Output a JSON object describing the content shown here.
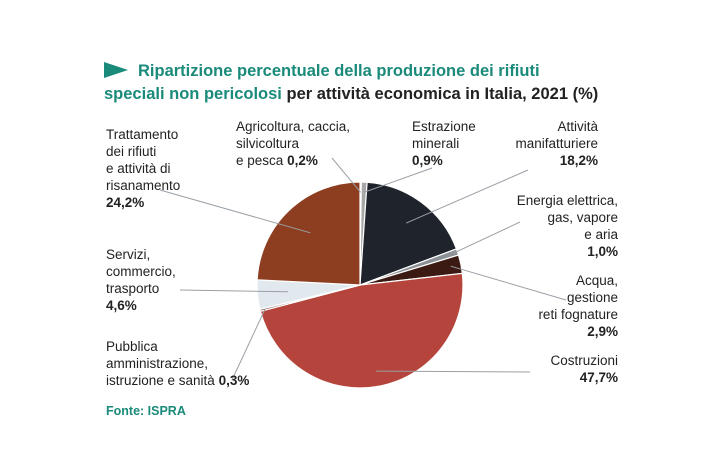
{
  "title": {
    "highlight_line1": "Ripartizione percentuale della produzione dei rifiuti",
    "highlight_line2": "speciali non pericolosi",
    "rest_line2": "per attività economica in Italia, 2021 (%)"
  },
  "source": "Fonte: ISPRA",
  "colors": {
    "accent": "#1a8a7a"
  },
  "chart_data": {
    "type": "pie",
    "start_angle_deg": 0,
    "direction": "clockwise",
    "slices": [
      {
        "label": "Agricoltura, caccia,\nsilvicoltura\ne pesca",
        "value": 0.2,
        "value_label": "0,2%",
        "color": "#c9c9c9"
      },
      {
        "label": "Estrazione\nminerali",
        "value": 0.9,
        "value_label": "0,9%",
        "color": "#a8a8a8"
      },
      {
        "label": "Attività\nmanifatturiere",
        "value": 18.2,
        "value_label": "18,2%",
        "color": "#1f242c"
      },
      {
        "label": "Energia elettrica,\ngas, vapore\ne aria",
        "value": 1.0,
        "value_label": "1,0%",
        "color": "#8c9197"
      },
      {
        "label": "Acqua,\ngestione\nreti fognature",
        "value": 2.9,
        "value_label": "2,9%",
        "color": "#3a1a12"
      },
      {
        "label": "Costruzioni",
        "value": 47.7,
        "value_label": "47,7%",
        "color": "#b5453c"
      },
      {
        "label": "Pubblica\namministrazione,\nistruzione e sanità",
        "value": 0.3,
        "value_label": "0,3%",
        "color": "#5a1e18"
      },
      {
        "label": "Servizi,\ncommercio,\ntrasporto",
        "value": 4.6,
        "value_label": "4,6%",
        "color": "#e2e9ee"
      },
      {
        "label": "Trattamento\ndei rifiuti\ne attività di\nrisanamento",
        "value": 24.2,
        "value_label": "24,2%",
        "color": "#8d3e20"
      }
    ]
  }
}
